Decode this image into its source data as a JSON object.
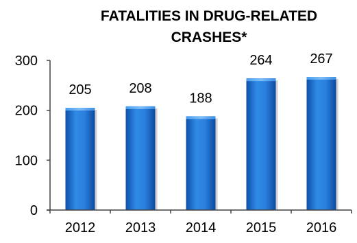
{
  "chart_data": {
    "type": "bar",
    "title_lines": [
      "FATALITIES IN DRUG-RELATED",
      "CRASHES*"
    ],
    "categories": [
      "2012",
      "2013",
      "2014",
      "2015",
      "2016"
    ],
    "values": [
      205,
      208,
      188,
      264,
      267
    ],
    "data_labels": [
      "205",
      "208",
      "188",
      "264",
      "267"
    ],
    "ylim": [
      0,
      300
    ],
    "yticks": [
      0,
      100,
      200,
      300
    ],
    "ytick_labels": [
      "0",
      "100",
      "200",
      "300"
    ],
    "grid": false,
    "legend": "none",
    "bar_color": "#1a73d4"
  }
}
